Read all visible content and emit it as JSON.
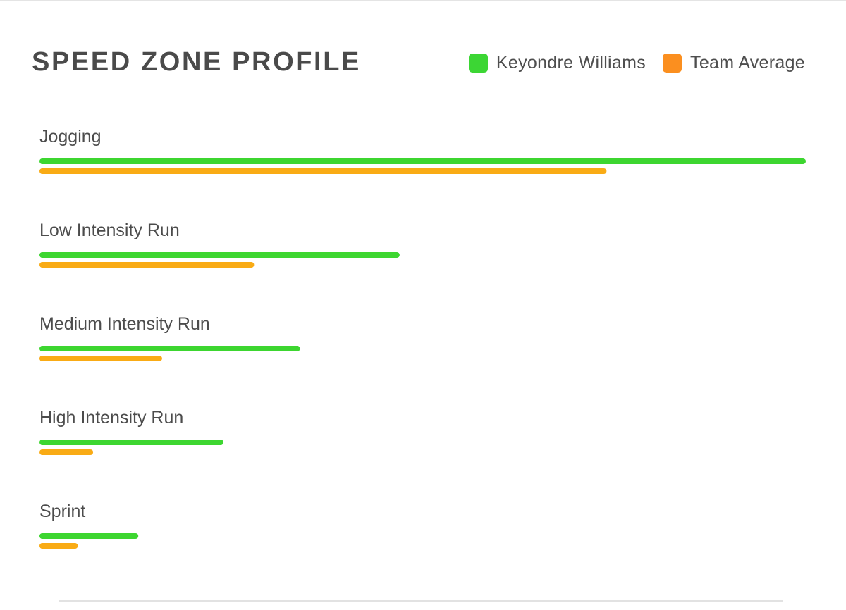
{
  "chart_data": {
    "type": "bar",
    "orientation": "horizontal",
    "title": "SPEED ZONE PROFILE",
    "categories": [
      "Jogging",
      "Low Intensity Run",
      "Medium Intensity Run",
      "High Intensity Run",
      "Sprint"
    ],
    "series": [
      {
        "name": "Keyondre Williams",
        "color": "#3dd630",
        "values": [
          100,
          47,
          34,
          24,
          12.9
        ]
      },
      {
        "name": "Team Average",
        "color": "#f9ab15",
        "values": [
          74,
          28,
          16,
          7,
          5
        ]
      }
    ],
    "value_scale": "relative (longest bar = 100)",
    "xlim": [
      0,
      100
    ],
    "axes_shown": false,
    "grid": false,
    "legend_position": "top-right"
  },
  "legend": [
    {
      "label": "Keyondre Williams",
      "color": "#3cd634"
    },
    {
      "label": "Team Average",
      "color": "#fb8f1f"
    }
  ]
}
